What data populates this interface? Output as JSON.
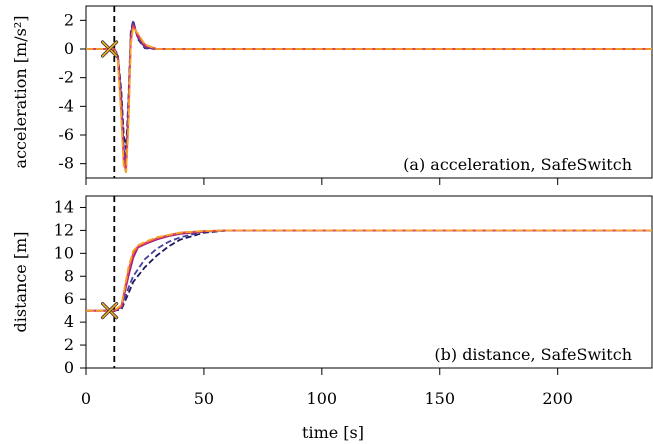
{
  "chart_data": [
    {
      "type": "line",
      "caption": "(a) acceleration, SafeSwitch",
      "ylabel": "acceleration [m/s²]",
      "xlabel": "",
      "xlim": [
        0,
        240
      ],
      "ylim": [
        -9,
        3
      ],
      "xticks": [
        0,
        50,
        100,
        150,
        200
      ],
      "yticks": [
        2,
        0,
        -2,
        -4,
        -6,
        -8
      ],
      "ytick_labels": [
        "2",
        "0",
        "-2",
        "-4",
        "-6",
        "-8"
      ],
      "switch_time": 12,
      "switch_marker": {
        "x": 10,
        "y": 0
      },
      "series": [
        {
          "color": "#1a1a5e",
          "dash": "6,3",
          "x": [
            0,
            10,
            12,
            13.5,
            15,
            16,
            17,
            18,
            19,
            20,
            22,
            25,
            30,
            240
          ],
          "y": [
            0,
            0,
            0,
            -0.4,
            -3,
            -6,
            -7,
            -3.5,
            1.2,
            2.0,
            0.7,
            0.05,
            0,
            0
          ]
        },
        {
          "color": "#4a3f9e",
          "dash": "",
          "x": [
            0,
            10,
            12,
            13.5,
            15,
            16,
            17,
            18,
            19,
            20,
            22,
            25,
            30,
            240
          ],
          "y": [
            0,
            0,
            0,
            -0.5,
            -3.5,
            -7,
            -7.8,
            -4,
            1.0,
            1.9,
            0.8,
            0.1,
            0,
            0
          ]
        },
        {
          "color": "#a02080",
          "dash": "",
          "x": [
            0,
            10,
            12,
            13.5,
            15,
            16,
            17,
            18,
            19,
            20,
            22,
            25,
            30,
            240
          ],
          "y": [
            0,
            0,
            0,
            -0.6,
            -4,
            -7.5,
            -8.2,
            -4.5,
            0.8,
            1.7,
            0.9,
            0.2,
            0,
            0
          ]
        },
        {
          "color": "#e8455a",
          "dash": "",
          "x": [
            0,
            10,
            12,
            13.5,
            15,
            16,
            17,
            18,
            19,
            20,
            22,
            25,
            30,
            240
          ],
          "y": [
            0,
            0,
            0,
            -0.7,
            -4.5,
            -8,
            -8.5,
            -5,
            0.5,
            1.6,
            1.0,
            0.3,
            0,
            0
          ]
        },
        {
          "color": "#f5a623",
          "dash": "7,3",
          "x": [
            0,
            10,
            12,
            13.5,
            15,
            16,
            17,
            18,
            19,
            20,
            22,
            25,
            30,
            240
          ],
          "y": [
            0,
            0,
            0,
            -0.8,
            -5,
            -8.3,
            -8.6,
            -5.5,
            0.3,
            1.5,
            1.1,
            0.3,
            0,
            0
          ]
        }
      ]
    },
    {
      "type": "line",
      "caption": "(b) distance, SafeSwitch",
      "ylabel": "distance [m]",
      "xlabel": "time [s]",
      "xlim": [
        0,
        240
      ],
      "ylim": [
        0,
        15
      ],
      "xticks": [
        0,
        50,
        100,
        150,
        200
      ],
      "xtick_labels": [
        "0",
        "50",
        "100",
        "150",
        "200"
      ],
      "yticks": [
        0,
        2,
        4,
        6,
        8,
        10,
        12,
        14
      ],
      "ytick_labels": [
        "0",
        "2",
        "4",
        "6",
        "8",
        "10",
        "12",
        "14"
      ],
      "switch_time": 12,
      "switch_marker": {
        "x": 10,
        "y": 5
      },
      "series": [
        {
          "color": "#1a1a5e",
          "dash": "6,3",
          "x": [
            0,
            10,
            12,
            15,
            18,
            20,
            25,
            30,
            35,
            40,
            50,
            60,
            70,
            240
          ],
          "y": [
            5,
            5,
            5,
            5.1,
            6.5,
            7.5,
            8.8,
            9.8,
            10.6,
            11.2,
            11.8,
            12,
            12,
            12
          ]
        },
        {
          "color": "#4a3f9e",
          "dash": "6,3",
          "x": [
            0,
            10,
            12,
            15,
            18,
            20,
            25,
            30,
            35,
            40,
            50,
            60,
            70,
            240
          ],
          "y": [
            5,
            5,
            5,
            5.2,
            7.0,
            8.0,
            9.5,
            10.4,
            11.0,
            11.4,
            11.9,
            12,
            12,
            12
          ]
        },
        {
          "color": "#a02080",
          "dash": "",
          "x": [
            0,
            10,
            12,
            15,
            18,
            20,
            22,
            25,
            30,
            35,
            40,
            50,
            60,
            240
          ],
          "y": [
            5,
            5,
            5,
            5.3,
            8.0,
            9.6,
            10.5,
            10.8,
            11.2,
            11.5,
            11.7,
            11.9,
            12,
            12
          ]
        },
        {
          "color": "#e8455a",
          "dash": "",
          "x": [
            0,
            10,
            12,
            15,
            18,
            20,
            22,
            25,
            30,
            35,
            40,
            50,
            60,
            240
          ],
          "y": [
            5,
            5,
            5,
            5.4,
            8.5,
            10.0,
            10.6,
            10.9,
            11.3,
            11.6,
            11.8,
            11.95,
            12,
            12
          ]
        },
        {
          "color": "#f5a623",
          "dash": "7,3",
          "x": [
            0,
            10,
            12,
            15,
            18,
            20,
            22,
            25,
            30,
            35,
            40,
            50,
            60,
            240
          ],
          "y": [
            5,
            5,
            5,
            5.5,
            8.8,
            10.2,
            10.7,
            11.0,
            11.4,
            11.6,
            11.8,
            11.95,
            12,
            12
          ]
        }
      ]
    }
  ]
}
